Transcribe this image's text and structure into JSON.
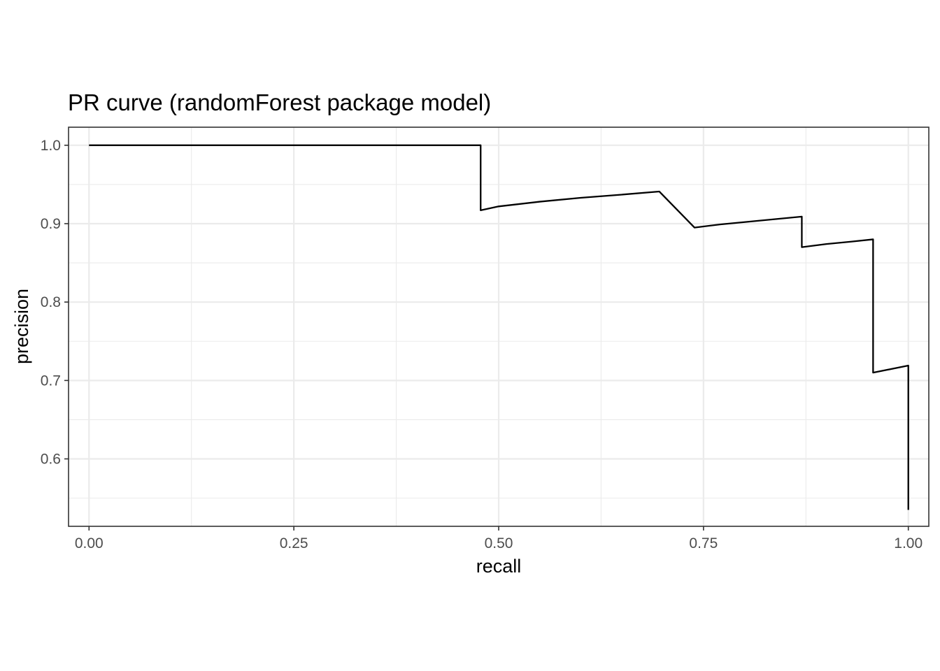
{
  "chart_data": {
    "type": "line",
    "title": "PR curve (randomForest package model)",
    "xlabel": "recall",
    "ylabel": "precision",
    "xlim": [
      -0.025,
      1.025
    ],
    "ylim": [
      0.514,
      1.023
    ],
    "x_ticks": [
      0.0,
      0.25,
      0.5,
      0.75,
      1.0
    ],
    "x_tick_labels": [
      "0.00",
      "0.25",
      "0.50",
      "0.75",
      "1.00"
    ],
    "y_ticks": [
      0.6,
      0.7,
      0.8,
      0.9,
      1.0
    ],
    "y_tick_labels": [
      "0.6",
      "0.7",
      "0.8",
      "0.9",
      "1.0"
    ],
    "grid": true,
    "legend": "none",
    "series": [
      {
        "color": "#000000",
        "x": [
          0.0,
          0.478,
          0.478,
          0.5,
          0.55,
          0.6,
          0.65,
          0.696,
          0.739,
          0.77,
          0.8,
          0.84,
          0.87,
          0.87,
          0.9,
          0.93,
          0.957,
          0.957,
          1.0,
          1.0
        ],
        "y": [
          1.0,
          1.0,
          0.917,
          0.922,
          0.928,
          0.933,
          0.937,
          0.941,
          0.895,
          0.899,
          0.902,
          0.906,
          0.909,
          0.87,
          0.874,
          0.877,
          0.88,
          0.71,
          0.719,
          0.535
        ]
      }
    ]
  }
}
